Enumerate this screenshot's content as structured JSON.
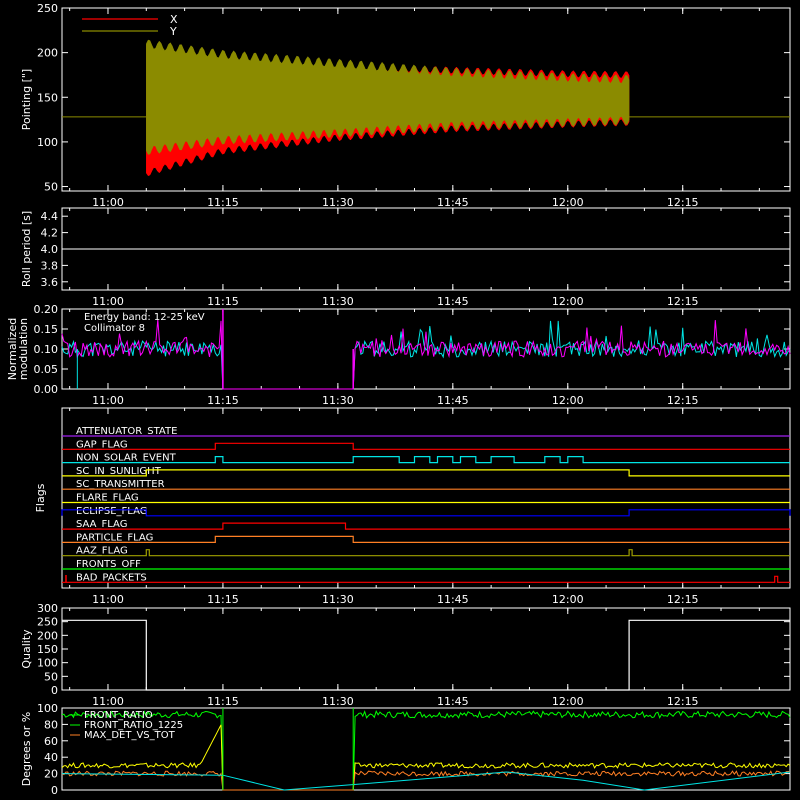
{
  "x_ticks": [
    "11:00",
    "11:15",
    "11:30",
    "11:45",
    "12:00",
    "12:15"
  ],
  "colors": {
    "background": "#000000",
    "axis": "#ffffff",
    "red": "#ff0000",
    "olive": "#8b8b00",
    "cyan": "#00e5e5",
    "magenta": "#ff00ff",
    "yellow": "#ffff00",
    "orange": "#ff7f24",
    "green": "#00ff00",
    "blue": "#0000ff",
    "purple": "#a020f0",
    "goldenrod": "#a0a000",
    "white": "#ffffff"
  },
  "chart_data": [
    {
      "id": "pointing",
      "type": "line",
      "ylabel": "Pointing [\"]",
      "ylim": [
        45,
        250
      ],
      "yticks": [
        "50",
        "100",
        "150",
        "200",
        "250"
      ],
      "legend": [
        {
          "label": "X",
          "color": "#ff0000"
        },
        {
          "label": "Y",
          "color": "#8b8b00"
        }
      ],
      "series": [
        {
          "name": "X",
          "x": [
            "11:05",
            "11:15",
            "11:30",
            "11:45",
            "12:00",
            "12:08"
          ],
          "ymin": [
            65,
            90,
            105,
            115,
            120,
            122
          ],
          "ymax": [
            208,
            195,
            185,
            180,
            176,
            175
          ]
        },
        {
          "name": "Y",
          "x": [
            "11:05",
            "11:15",
            "11:30",
            "11:45",
            "12:00",
            "12:08"
          ],
          "ymin": [
            90,
            102,
            110,
            118,
            122,
            124
          ],
          "ymax": [
            210,
            198,
            188,
            178,
            172,
            170
          ]
        }
      ],
      "baseline": 128
    },
    {
      "id": "roll",
      "type": "line",
      "ylabel": "Roll period [s]",
      "ylim": [
        3.5,
        4.5
      ],
      "yticks": [
        "3.6",
        "3.8",
        "4.0",
        "4.2",
        "4.4"
      ],
      "series": [
        {
          "x": [
            "10:54",
            "12:29"
          ],
          "y": [
            4.0,
            4.0
          ]
        }
      ]
    },
    {
      "id": "modulation",
      "type": "line",
      "ylabel_lines": [
        "Normalized",
        "modulation"
      ],
      "ylim": [
        0,
        0.2
      ],
      "yticks": [
        "0.00",
        "0.05",
        "0.10",
        "0.15",
        "0.20"
      ],
      "annotations": [
        "Energy band: 12-25 keV",
        "Collimator 8"
      ],
      "gaps": [
        [
          "11:15",
          "11:32"
        ]
      ],
      "typical": 0.1
    },
    {
      "id": "flags",
      "type": "line",
      "ylabel": "Flags",
      "flags": [
        {
          "label": "ATTENUATOR_STATE",
          "color": "#a020f0",
          "high": []
        },
        {
          "label": "GAP_FLAG",
          "color": "#ff0000",
          "high": [
            [
              "11:14",
              "11:32"
            ]
          ]
        },
        {
          "label": "NON_SOLAR_EVENT",
          "color": "#00e5e5",
          "high": [
            [
              "11:14",
              "11:15"
            ],
            [
              "11:32",
              "11:38"
            ],
            [
              "11:40",
              "11:42"
            ],
            [
              "11:43",
              "11:45"
            ],
            [
              "11:46",
              "11:48"
            ],
            [
              "11:50",
              "11:53"
            ],
            [
              "11:57",
              "11:59"
            ],
            [
              "12:00",
              "12:02"
            ]
          ]
        },
        {
          "label": "SC_IN_SUNLIGHT",
          "color": "#ffff00",
          "high": [
            [
              "11:05",
              "12:08"
            ]
          ]
        },
        {
          "label": "SC_TRANSMITTER",
          "color": "#ff7f24",
          "high": []
        },
        {
          "label": "FLARE_FLAG",
          "color": "#ffff00",
          "high": []
        },
        {
          "label": "ECLIPSE_FLAG",
          "color": "#0000ff",
          "high": [
            [
              "10:54",
              "11:05"
            ],
            [
              "12:08",
              "12:29"
            ]
          ]
        },
        {
          "label": "SAA_FLAG",
          "color": "#ff0000",
          "high": [
            [
              "11:15",
              "11:31"
            ]
          ]
        },
        {
          "label": "PARTICLE_FLAG",
          "color": "#ff7f24",
          "high": [
            [
              "11:14",
              "11:32"
            ]
          ]
        },
        {
          "label": "AAZ_FLAG",
          "color": "#a0a000",
          "high": [
            [
              "11:05",
              "11:05"
            ],
            [
              "12:08",
              "12:08"
            ]
          ]
        },
        {
          "label": "FRONTS_OFF",
          "color": "#00ff00",
          "high": []
        },
        {
          "label": "BAD_PACKETS",
          "color": "#ff0000",
          "high": [
            [
              "12:27",
              "12:27"
            ]
          ]
        }
      ]
    },
    {
      "id": "quality",
      "type": "line",
      "ylabel": "Quality",
      "ylim": [
        0,
        300
      ],
      "yticks": [
        "0",
        "50",
        "100",
        "150",
        "200",
        "250",
        "300"
      ],
      "series": [
        {
          "x": [
            "10:54",
            "11:05",
            "11:05",
            "12:08",
            "12:08",
            "12:29"
          ],
          "y": [
            255,
            255,
            0,
            0,
            255,
            255
          ]
        }
      ]
    },
    {
      "id": "ratios",
      "type": "line",
      "ylabel": "Degrees or %",
      "ylim": [
        0,
        100
      ],
      "yticks": [
        "0",
        "20",
        "40",
        "60",
        "80",
        "100"
      ],
      "legend": [
        {
          "label": "FRONT_RATIO",
          "color": "#00ff00"
        },
        {
          "label": "FRONT_RATIO_1225",
          "color": "#00ff00"
        },
        {
          "label": "MAX_DET_VS_TOT",
          "color": "#ff7f24"
        }
      ],
      "series": [
        {
          "name": "FRONT_RATIO",
          "typical": 92
        },
        {
          "name": "FRONT_RATIO_1225",
          "typical": 30
        },
        {
          "name": "MAX_DET_VS_TOT",
          "typical": 20
        }
      ]
    }
  ]
}
